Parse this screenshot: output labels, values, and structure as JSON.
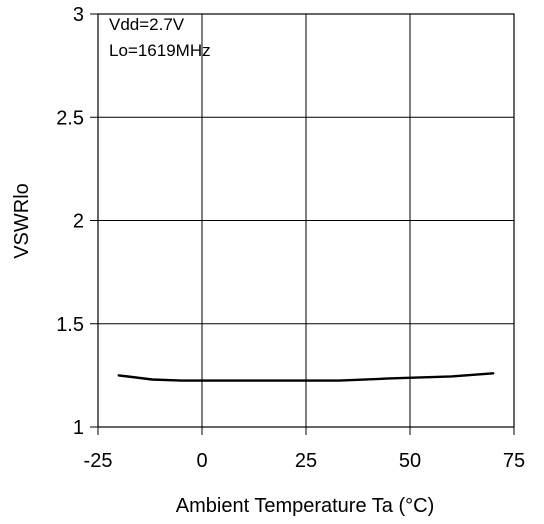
{
  "chart_data": {
    "type": "line",
    "xlabel": "Ambient Temperature   Ta (°C)",
    "ylabel": "VSWRlo",
    "xlim": [
      -25,
      75
    ],
    "ylim": [
      1,
      3
    ],
    "xticks": [
      -25,
      0,
      25,
      50,
      75
    ],
    "yticks": [
      1,
      1.5,
      2,
      2.5,
      3
    ],
    "xtick_labels": [
      "-25",
      "0",
      "25",
      "50",
      "75"
    ],
    "ytick_labels": [
      "1",
      "1.5",
      "2",
      "2.5",
      "3"
    ],
    "grid": true,
    "annotations": [
      "Vdd=2.7V",
      "Lo=1619MHz"
    ],
    "series": [
      {
        "x": [
          -20,
          -12,
          -5,
          10,
          25,
          33,
          45,
          60,
          70
        ],
        "y": [
          1.25,
          1.23,
          1.225,
          1.225,
          1.225,
          1.225,
          1.235,
          1.245,
          1.26
        ]
      }
    ],
    "colors": {
      "line": "#000000",
      "grid": "#000000",
      "frame": "#000000"
    }
  }
}
